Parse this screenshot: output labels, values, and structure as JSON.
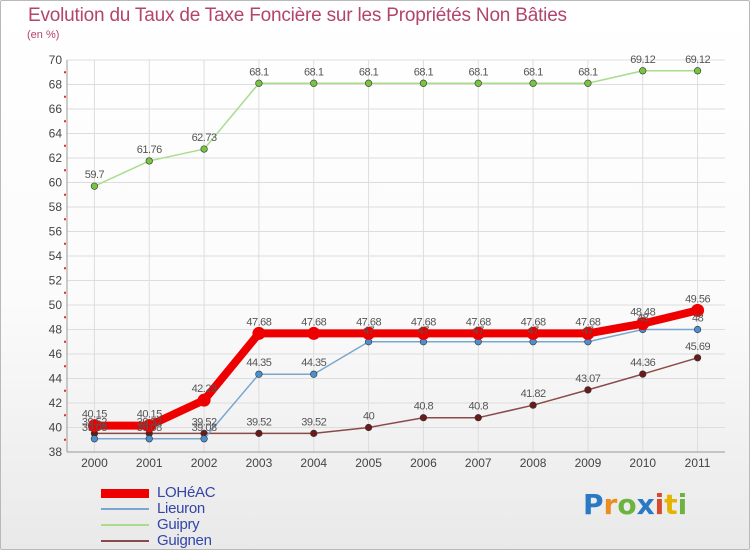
{
  "header": {
    "title": "Evolution du Taux de Taxe Foncière sur les Propriétés Non Bâties",
    "subtitle": "(en %)"
  },
  "logo": {
    "letters": [
      "P",
      "r",
      "o",
      "x",
      "i",
      "t",
      "i"
    ],
    "colors": [
      "#2a79c5",
      "#e98e1f",
      "#6cb33f",
      "#2a79c5",
      "#d94a2c",
      "#e5b400",
      "#6cb33f"
    ]
  },
  "chart_data": {
    "type": "line",
    "x": [
      "2000",
      "2001",
      "2002",
      "2003",
      "2004",
      "2005",
      "2006",
      "2007",
      "2008",
      "2009",
      "2010",
      "2011"
    ],
    "ylim": [
      38,
      70
    ],
    "yticks": [
      "38",
      "40",
      "42",
      "44",
      "46",
      "48",
      "50",
      "52",
      "54",
      "56",
      "58",
      "60",
      "62",
      "64",
      "66",
      "68",
      "70"
    ],
    "grid": true,
    "legend_position": "bottom-left",
    "series": [
      {
        "name": "LOHéAC",
        "values": [
          40.15,
          40.15,
          42.23,
          47.68,
          47.68,
          47.68,
          47.68,
          47.68,
          47.68,
          47.68,
          48.48,
          49.56
        ],
        "labels": [
          "40.15",
          "40.15",
          "42.23",
          "47.68",
          "47.68",
          "47.68",
          "47.68",
          "47.68",
          "47.68",
          "47.68",
          "48.48",
          "49.56"
        ],
        "color": "#ee0000",
        "marker_color": "#ee0000",
        "width": 8
      },
      {
        "name": "Lieuron",
        "values": [
          39.08,
          39.08,
          39.08,
          44.35,
          44.35,
          47,
          47,
          47,
          47,
          47,
          48,
          48
        ],
        "labels": [
          "39.08",
          "39.08",
          "39.08",
          "44.35",
          "44.35",
          "47",
          "47",
          "47",
          "47",
          "47",
          "48",
          "48"
        ],
        "color": "#7aa7cf",
        "marker_color": "#4a90d0",
        "width": 1.5
      },
      {
        "name": "Guipry",
        "values": [
          59.7,
          61.76,
          62.73,
          68.1,
          68.1,
          68.1,
          68.1,
          68.1,
          68.1,
          68.1,
          69.12,
          69.12
        ],
        "labels": [
          "59.7",
          "61.76",
          "62.73",
          "68.1",
          "68.1",
          "68.1",
          "68.1",
          "68.1",
          "68.1",
          "68.1",
          "69.12",
          "69.12"
        ],
        "color": "#a9dd8b",
        "marker_color": "#76c442",
        "width": 1.5
      },
      {
        "name": "Guignen",
        "values": [
          39.52,
          39.52,
          39.52,
          39.52,
          39.52,
          40,
          40.8,
          40.8,
          41.82,
          43.07,
          44.36,
          45.69
        ],
        "labels": [
          "39.52",
          "39.52",
          "39.52",
          "39.52",
          "39.52",
          "40",
          "40.8",
          "40.8",
          "41.82",
          "43.07",
          "44.36",
          "45.69"
        ],
        "color": "#8b4a4a",
        "marker_color": "#6b1a1a",
        "width": 1.5
      }
    ]
  }
}
